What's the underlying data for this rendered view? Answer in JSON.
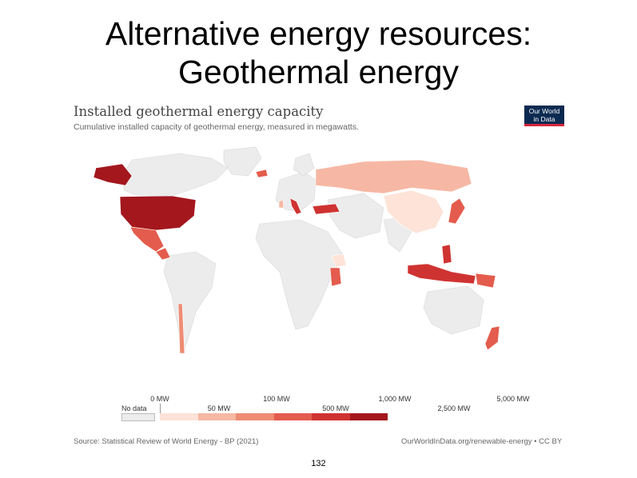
{
  "slide": {
    "title_line1": "Alternative energy resources:",
    "title_line2": "Geothermal energy",
    "page_number": "132"
  },
  "chart": {
    "title": "Installed geothermal energy capacity",
    "subtitle": "Cumulative installed capacity of geothermal energy, measured in megawatts.",
    "logo_line1": "Our World",
    "logo_line2": "in Data",
    "source": "Source: Statistical Review of World Energy - BP (2021)",
    "credit": "OurWorldInData.org/renewable-energy • CC BY",
    "no_data_label": "No data",
    "legend": {
      "labels": [
        "0 MW",
        "50 MW",
        "100 MW",
        "500 MW",
        "1,000 MW",
        "2,500 MW",
        "5,000 MW"
      ],
      "colors": [
        "#fde3d8",
        "#f6b8a4",
        "#ee8c74",
        "#e45c4d",
        "#cf3331",
        "#a3171d"
      ],
      "no_data_color": "#ececec"
    }
  },
  "chart_data": {
    "type": "heatmap",
    "values": [
      {
        "region": "United States",
        "color": "#a3171d"
      },
      {
        "region": "Alaska",
        "color": "#a3171d"
      },
      {
        "region": "Mexico",
        "color": "#e45c4d"
      },
      {
        "region": "Central America",
        "color": "#e45c4d"
      },
      {
        "region": "Russia",
        "color": "#f6b8a4"
      },
      {
        "region": "China",
        "color": "#fde3d8"
      },
      {
        "region": "Turkey",
        "color": "#cf3331"
      },
      {
        "region": "Italy",
        "color": "#cf3331"
      },
      {
        "region": "Japan",
        "color": "#e45c4d"
      },
      {
        "region": "Philippines",
        "color": "#cf3331"
      },
      {
        "region": "Indonesia",
        "color": "#cf3331"
      },
      {
        "region": "Papua New Guinea",
        "color": "#e45c4d"
      },
      {
        "region": "Kenya",
        "color": "#e45c4d"
      },
      {
        "region": "Ethiopia",
        "color": "#fde3d8"
      },
      {
        "region": "New Zealand",
        "color": "#e45c4d"
      },
      {
        "region": "Iceland",
        "color": "#e45c4d"
      },
      {
        "region": "Chile",
        "color": "#ee8c74"
      },
      {
        "region": "Portugal",
        "color": "#f6b8a4"
      }
    ]
  }
}
